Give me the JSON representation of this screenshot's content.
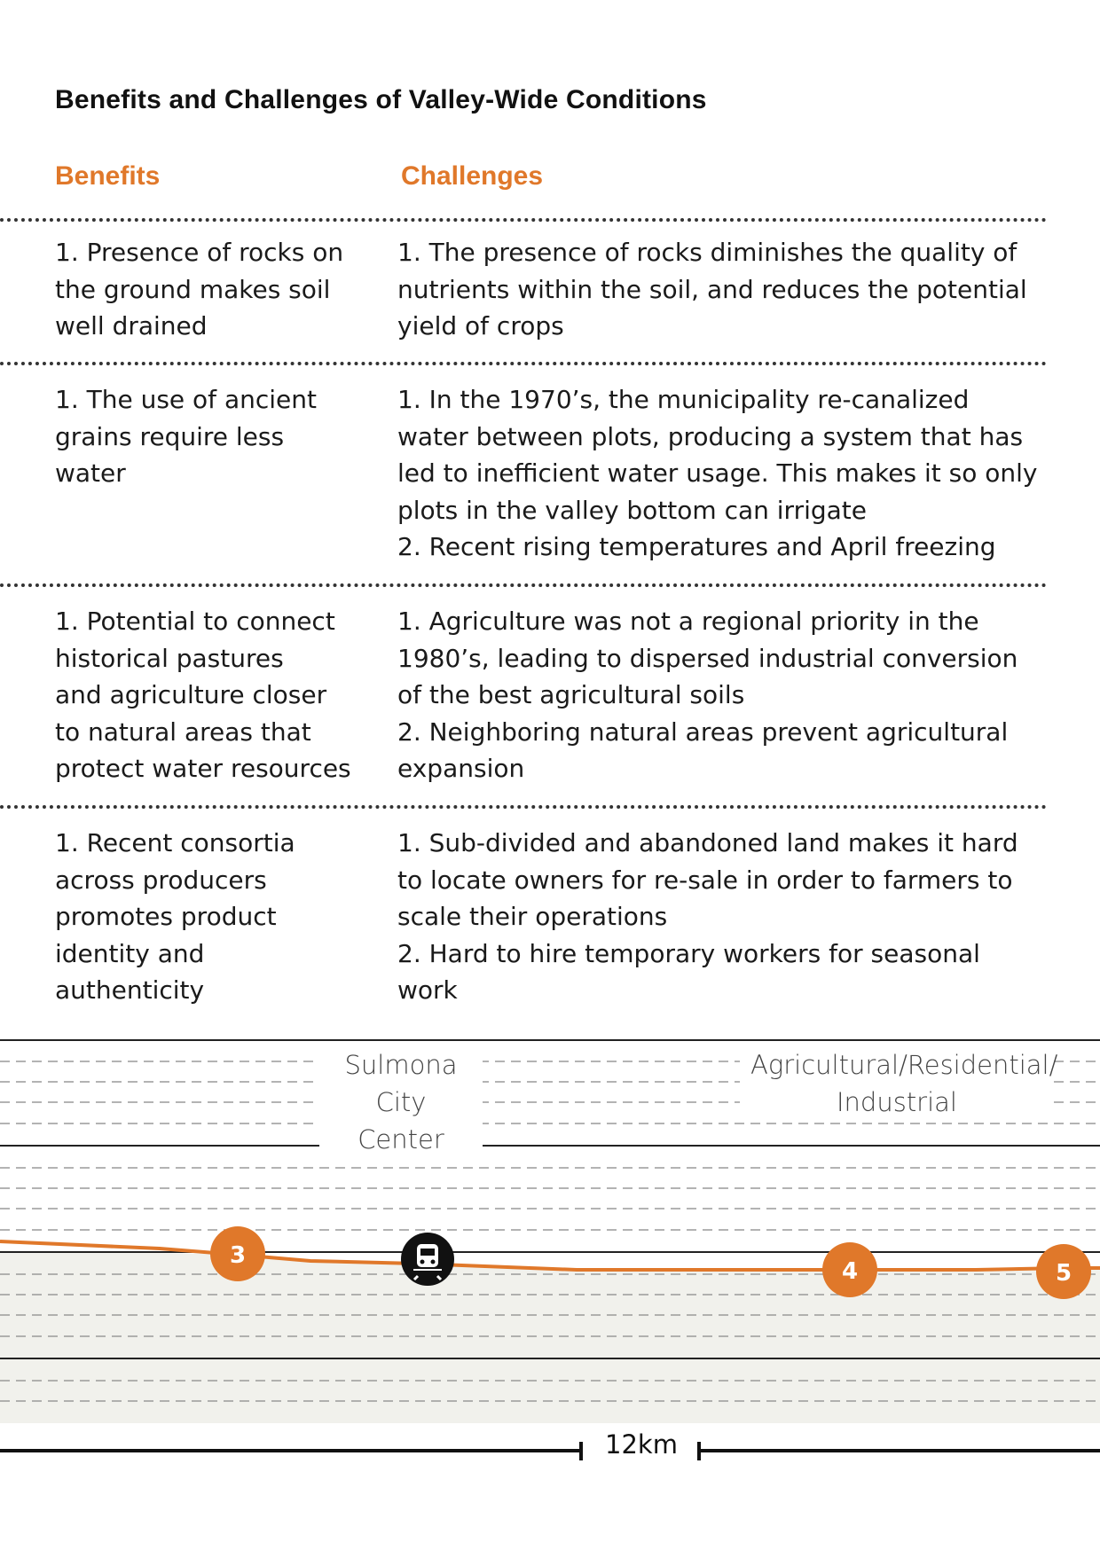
{
  "title": "Benefits and Challenges of Valley-Wide Conditions",
  "headers": {
    "benefits": "Benefits",
    "challenges": "Challenges"
  },
  "rows": [
    {
      "benefits": [
        "1. Presence of rocks on",
        "the ground makes soil",
        "well drained"
      ],
      "challenges": [
        "1. The presence of rocks diminishes the quality of",
        "nutrients within the soil, and reduces the potential",
        "yield of crops"
      ]
    },
    {
      "benefits": [
        "1. The use of ancient",
        "grains require less",
        "water"
      ],
      "challenges": [
        "1. In the 1970’s, the municipality re-canalized",
        "water between plots, producing a system that has",
        "led to inefficient water usage. This makes it so only",
        "plots in the valley bottom can irrigate",
        "2. Recent rising temperatures and April freezing"
      ]
    },
    {
      "benefits": [
        "1. Potential to connect",
        "historical pastures",
        "and agriculture closer",
        "to natural areas that",
        "protect water resources"
      ],
      "challenges": [
        "1. Agriculture was not a regional priority in the",
        "1980’s, leading to dispersed industrial conversion",
        "of the best agricultural soils",
        "2. Neighboring natural areas prevent agricultural",
        "expansion"
      ]
    },
    {
      "benefits": [
        "1. Recent consortia",
        "across producers",
        "promotes product",
        "identity and",
        "authenticity"
      ],
      "challenges": [
        "1. Sub-divided and abandoned land makes it hard",
        "to locate owners for re-sale in order to farmers to",
        "scale their operations",
        "2. Hard to hire temporary workers for seasonal",
        "work"
      ]
    }
  ],
  "profile": {
    "zone_labels": [
      {
        "line1": "Sulmona",
        "line2": "City Center"
      },
      {
        "line1": "Agricultural/Residential/",
        "line2": "Industrial"
      }
    ],
    "markers": [
      "3",
      "4",
      "5"
    ],
    "station_icon": "train-icon",
    "scale_label": "12km"
  },
  "colors": {
    "accent": "#e0782a",
    "text": "#1a1a1a",
    "dash": "#9a9a9a",
    "ground": "#f1f1ec"
  }
}
